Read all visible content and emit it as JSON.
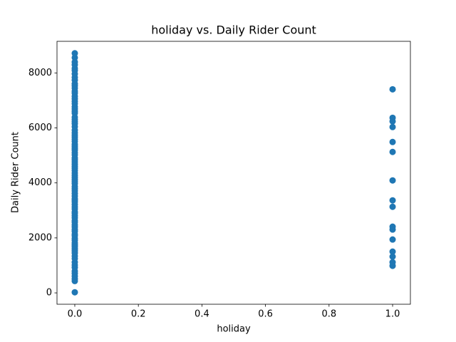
{
  "chart_data": {
    "type": "scatter",
    "title": "holiday vs. Daily Rider Count",
    "x_label": "holiday",
    "y_label": "Daily Rider Count",
    "color": "#1f77b4",
    "x": [
      0,
      0,
      0,
      0,
      0,
      0,
      0,
      0,
      0,
      0,
      0,
      0,
      0,
      0,
      0,
      0,
      0,
      0,
      0,
      0,
      0,
      0,
      0,
      0,
      0,
      0,
      0,
      0,
      0,
      0,
      0,
      0,
      0,
      0,
      0,
      0,
      0,
      0,
      0,
      0,
      0,
      0,
      0,
      0,
      0,
      0,
      0,
      0,
      0,
      0,
      0,
      0,
      0,
      0,
      0,
      0,
      0,
      0,
      0,
      0,
      0,
      0,
      0,
      0,
      0,
      0,
      0,
      0,
      0,
      0,
      0,
      0,
      0,
      0,
      0,
      0,
      0,
      0,
      0,
      0,
      0,
      0,
      0,
      0,
      0,
      0,
      0,
      0,
      0,
      0,
      0,
      0,
      0,
      0,
      1,
      1,
      1,
      1,
      1,
      1,
      1,
      1,
      1,
      1,
      1,
      1,
      1,
      1,
      1,
      1
    ],
    "values": [
      22,
      431,
      506,
      605,
      705,
      795,
      920,
      1013,
      1115,
      1248,
      1341,
      1450,
      1530,
      1606,
      1685,
      1746,
      1815,
      1913,
      1985,
      2077,
      2132,
      2236,
      2302,
      2395,
      2471,
      2566,
      2633,
      2729,
      2808,
      2895,
      2947,
      3053,
      3129,
      3214,
      3310,
      3372,
      3422,
      3520,
      3614,
      3709,
      3784,
      3867,
      3974,
      4046,
      4118,
      4195,
      4274,
      4359,
      4451,
      4529,
      4595,
      4677,
      4763,
      4840,
      4906,
      5020,
      5099,
      5191,
      5260,
      5336,
      5409,
      5511,
      5588,
      5668,
      5743,
      5823,
      5918,
      6043,
      6153,
      6234,
      6312,
      6392,
      6536,
      6606,
      6691,
      6770,
      6883,
      6965,
      7058,
      7148,
      7264,
      7338,
      7444,
      7534,
      7605,
      7736,
      7836,
      7965,
      8090,
      8167,
      8294,
      8395,
      8555,
      8714,
      7404,
      6368,
      6239,
      6032,
      5488,
      5126,
      4090,
      3365,
      3132,
      2407,
      2304,
      1941,
      1501,
      1320,
      1113,
      984
    ],
    "xlim": [
      -0.056,
      1.056
    ],
    "ylim": [
      -413,
      9149
    ],
    "xticks": [
      {
        "value": 0,
        "label": "0.0"
      },
      0.2,
      0.4,
      0.6,
      0.8,
      {
        "value": 1,
        "label": "1.0"
      }
    ],
    "yticks": [
      0,
      2000,
      4000,
      6000,
      8000
    ]
  }
}
